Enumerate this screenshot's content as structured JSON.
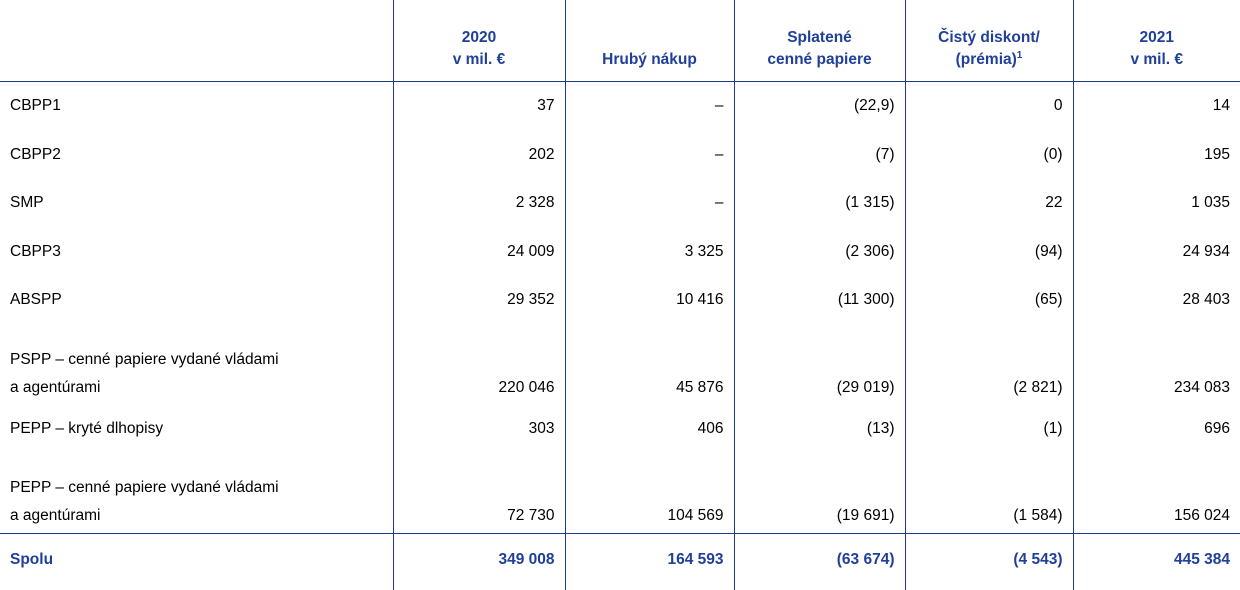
{
  "table": {
    "columns": [
      {
        "lines": [
          "2020",
          "v mil. €"
        ]
      },
      {
        "lines": [
          "Hrubý nákup"
        ]
      },
      {
        "lines": [
          "Splatené",
          "cenné papiere"
        ]
      },
      {
        "lines": [
          "Čistý diskont/",
          "(prémia)"
        ],
        "note": "1"
      },
      {
        "lines": [
          "2021",
          "v mil. €"
        ]
      }
    ],
    "rows": [
      {
        "label": [
          "CBPP1"
        ],
        "cells": [
          "37",
          "–",
          "(22,9)",
          "0",
          "14"
        ]
      },
      {
        "label": [
          "CBPP2"
        ],
        "cells": [
          "202",
          "–",
          "(7)",
          "(0)",
          "195"
        ]
      },
      {
        "label": [
          "SMP"
        ],
        "cells": [
          "2 328",
          "–",
          "(1 315)",
          "22",
          "1 035"
        ]
      },
      {
        "label": [
          "CBPP3"
        ],
        "cells": [
          "24 009",
          "3 325",
          "(2 306)",
          "(94)",
          "24 934"
        ]
      },
      {
        "label": [
          "ABSPP"
        ],
        "cells": [
          "29 352",
          "10 416",
          "(11 300)",
          "(65)",
          "28 403"
        ]
      },
      {
        "label": [
          "PSPP – cenné papiere vydané vládami",
          "a agentúrami"
        ],
        "cells": [
          "220 046",
          "45 876",
          "(29 019)",
          "(2 821)",
          "234 083"
        ]
      },
      {
        "label": [
          "PEPP – kryté dlhopisy"
        ],
        "cells": [
          "303",
          "406",
          "(13)",
          "(1)",
          "696"
        ]
      },
      {
        "label": [
          "PEPP – cenné papiere vydané vládami",
          "a agentúrami"
        ],
        "cells": [
          "72 730",
          "104 569",
          "(19 691)",
          "(1 584)",
          "156 024"
        ]
      }
    ],
    "total": {
      "label": [
        "Spolu"
      ],
      "cells": [
        "349 008",
        "164 593",
        "(63 674)",
        "(4 543)",
        "445 384"
      ]
    }
  }
}
